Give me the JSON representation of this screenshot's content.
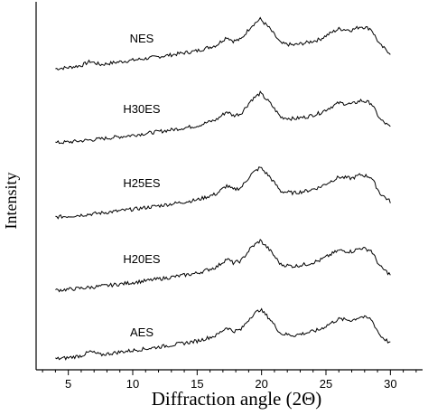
{
  "chart_data": {
    "type": "line",
    "xlabel": "Diffraction angle (2Θ)",
    "ylabel": "Intensity",
    "xlim": [
      2.5,
      32.5
    ],
    "x_ticks": [
      "5",
      "10",
      "15",
      "20",
      "25",
      "30"
    ],
    "x_tick_values": [
      5,
      10,
      15,
      20,
      25,
      30
    ],
    "grid": false,
    "legend": "none",
    "series": [
      {
        "name": "NES",
        "x": [
          4,
          5,
          6,
          6.7,
          7.5,
          9,
          11,
          13,
          15,
          16.5,
          17.3,
          17.8,
          18.4,
          19.2,
          19.9,
          20.6,
          21.5,
          22.5,
          23.5,
          24.5,
          25.5,
          26,
          27,
          27.7,
          28.5,
          29.2,
          30
        ],
        "y": [
          0.0,
          0.03,
          0.08,
          0.18,
          0.1,
          0.17,
          0.25,
          0.34,
          0.44,
          0.58,
          0.78,
          0.68,
          0.72,
          1.05,
          1.22,
          1.0,
          0.62,
          0.58,
          0.64,
          0.72,
          0.9,
          0.98,
          0.95,
          1.04,
          0.98,
          0.58,
          0.38
        ]
      },
      {
        "name": "H30ES",
        "x": [
          4,
          5,
          7,
          9,
          11,
          13,
          15,
          16.5,
          17.3,
          17.8,
          18.4,
          19.2,
          19.9,
          20.6,
          21.5,
          22.5,
          23.5,
          24.5,
          25.5,
          26,
          27,
          27.7,
          28.5,
          29.2,
          30
        ],
        "y": [
          0.0,
          0.02,
          0.08,
          0.15,
          0.23,
          0.32,
          0.42,
          0.57,
          0.77,
          0.67,
          0.72,
          1.05,
          1.22,
          1.0,
          0.63,
          0.59,
          0.64,
          0.73,
          0.9,
          0.98,
          0.95,
          1.04,
          0.98,
          0.58,
          0.38
        ]
      },
      {
        "name": "H25ES",
        "x": [
          4,
          5,
          7,
          9,
          11,
          13,
          15,
          16.5,
          17.3,
          17.8,
          18.4,
          19.2,
          19.9,
          20.6,
          21.5,
          22.5,
          23.5,
          24.5,
          25.5,
          26,
          27,
          27.7,
          28.5,
          29.2,
          30
        ],
        "y": [
          0.0,
          0.02,
          0.08,
          0.15,
          0.23,
          0.32,
          0.42,
          0.57,
          0.77,
          0.67,
          0.72,
          1.05,
          1.22,
          1.0,
          0.63,
          0.59,
          0.64,
          0.73,
          0.9,
          0.98,
          0.95,
          1.04,
          0.98,
          0.58,
          0.38
        ]
      },
      {
        "name": "H20ES",
        "x": [
          4,
          5,
          7,
          9,
          11,
          13,
          15,
          16.5,
          17.3,
          17.8,
          18.4,
          19.2,
          19.9,
          20.6,
          21.5,
          22.5,
          23.5,
          24.5,
          25.5,
          26,
          27,
          27.7,
          28.5,
          29.2,
          30
        ],
        "y": [
          0.0,
          0.02,
          0.08,
          0.15,
          0.23,
          0.32,
          0.42,
          0.57,
          0.77,
          0.67,
          0.72,
          1.05,
          1.22,
          1.0,
          0.63,
          0.59,
          0.64,
          0.73,
          0.9,
          0.98,
          0.95,
          1.04,
          0.98,
          0.58,
          0.38
        ]
      },
      {
        "name": "AES",
        "x": [
          4,
          5,
          6,
          6.7,
          7.5,
          9,
          11,
          13,
          15,
          16.5,
          17.3,
          17.8,
          18.4,
          19.2,
          19.9,
          20.6,
          21.5,
          22.5,
          23.5,
          24.5,
          25.5,
          26,
          27,
          27.7,
          28.5,
          29.2,
          30
        ],
        "y": [
          0.0,
          0.03,
          0.08,
          0.18,
          0.1,
          0.17,
          0.25,
          0.34,
          0.44,
          0.58,
          0.78,
          0.68,
          0.72,
          1.05,
          1.22,
          1.0,
          0.62,
          0.58,
          0.64,
          0.72,
          0.9,
          0.98,
          0.95,
          1.04,
          0.98,
          0.58,
          0.38
        ]
      }
    ]
  }
}
